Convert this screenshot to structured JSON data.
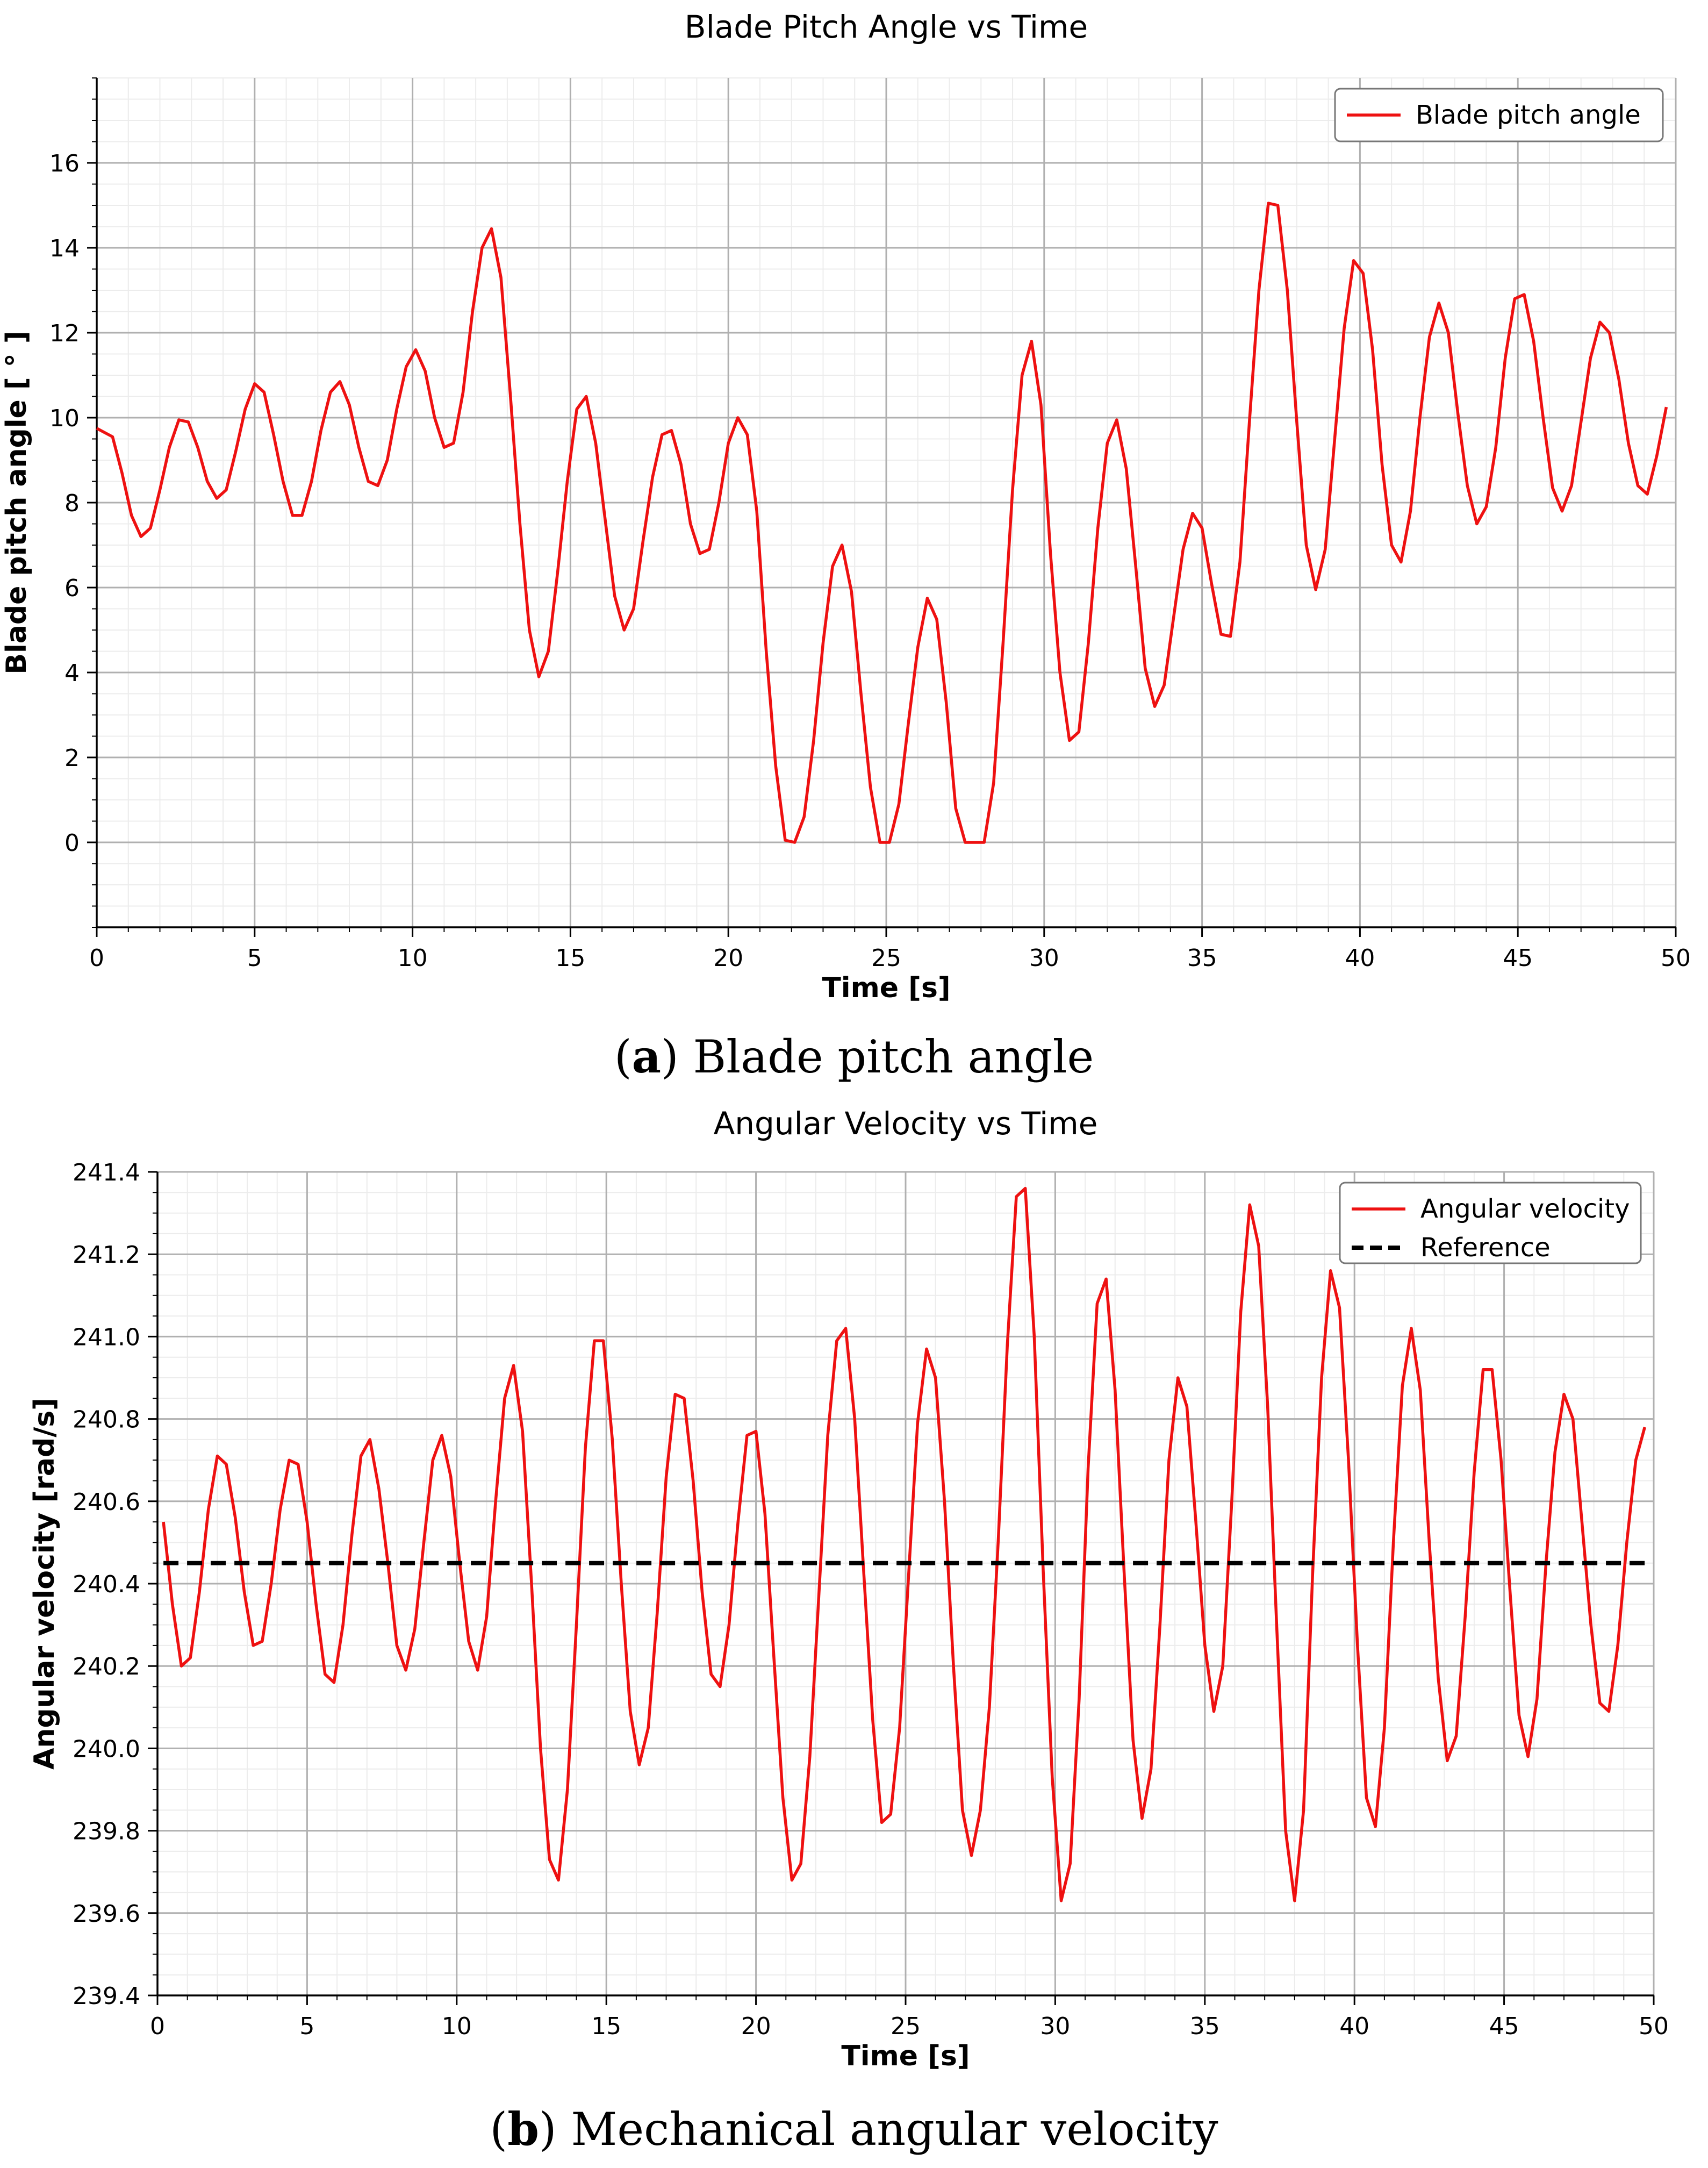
{
  "figure": {
    "caption_a_label": "a",
    "caption_a_text": " Blade pitch angle",
    "caption_b_label": "b",
    "caption_b_text": " Mechanical angular velocity"
  },
  "chart_data": [
    {
      "type": "line",
      "title": "Blade Pitch Angle vs Time",
      "xlabel": "Time [s]",
      "ylabel": "Blade pitch angle [ ° ]",
      "xlim": [
        0,
        50
      ],
      "ylim": [
        -2,
        18
      ],
      "xticks": [
        0,
        5,
        10,
        15,
        20,
        25,
        30,
        35,
        40,
        45,
        50
      ],
      "yticks": [
        0,
        2,
        4,
        6,
        8,
        10,
        12,
        14,
        16
      ],
      "ytick_labels": [
        "0",
        "2",
        "4",
        "6",
        "8",
        "10",
        "12",
        "14",
        "16"
      ],
      "grid": true,
      "legend": "top-right",
      "series": [
        {
          "name": "Blade pitch angle",
          "color": "#ee1111",
          "dash": "solid",
          "x": [
            0.0,
            0.5,
            0.8,
            1.1,
            1.4,
            1.7,
            2.0,
            2.3,
            2.6,
            2.9,
            3.2,
            3.5,
            3.8,
            4.1,
            4.4,
            4.7,
            5.0,
            5.3,
            5.6,
            5.9,
            6.2,
            6.5,
            6.8,
            7.1,
            7.4,
            7.7,
            8.0,
            8.3,
            8.6,
            8.9,
            9.2,
            9.5,
            9.8,
            10.1,
            10.4,
            10.7,
            11.0,
            11.3,
            11.6,
            11.9,
            12.2,
            12.5,
            12.8,
            13.1,
            13.4,
            13.7,
            14.0,
            14.3,
            14.6,
            14.9,
            15.2,
            15.5,
            15.8,
            16.1,
            16.4,
            16.7,
            17.0,
            17.3,
            17.6,
            17.9,
            18.2,
            18.5,
            18.8,
            19.1,
            19.4,
            19.7,
            20.0,
            20.3,
            20.6,
            20.9,
            21.2,
            21.5,
            21.8,
            22.1,
            22.4,
            22.7,
            23.0,
            23.3,
            23.6,
            23.9,
            24.2,
            24.5,
            24.8,
            25.1,
            25.4,
            25.7,
            26.0,
            26.3,
            26.6,
            26.9,
            27.2,
            27.5,
            27.8,
            28.1,
            28.4,
            28.7,
            29.0,
            29.3,
            29.6,
            29.9,
            30.2,
            30.5,
            30.8,
            31.1,
            31.4,
            31.7,
            32.0,
            32.3,
            32.6,
            32.9,
            33.2,
            33.5,
            33.8,
            34.1,
            34.4,
            34.7,
            35.0,
            35.3,
            35.6,
            35.9,
            36.2,
            36.5,
            36.8,
            37.1,
            37.4,
            37.7,
            38.0,
            38.3,
            38.6,
            38.9,
            39.2,
            39.5,
            39.8,
            40.1,
            40.4,
            40.7,
            41.0,
            41.3,
            41.6,
            41.9,
            42.2,
            42.5,
            42.8,
            43.1,
            43.4,
            43.7,
            44.0,
            44.3,
            44.6,
            44.9,
            45.2,
            45.5,
            45.8,
            46.1,
            46.4,
            46.7,
            47.0,
            47.3,
            47.6,
            47.9,
            48.2,
            48.5,
            48.8,
            49.1,
            49.4,
            49.7
          ],
          "y": [
            9.75,
            9.55,
            8.7,
            7.7,
            7.2,
            7.4,
            8.3,
            9.3,
            9.95,
            9.9,
            9.3,
            8.5,
            8.1,
            8.3,
            9.2,
            10.2,
            10.8,
            10.6,
            9.6,
            8.5,
            7.7,
            7.7,
            8.5,
            9.7,
            10.6,
            10.85,
            10.3,
            9.3,
            8.5,
            8.4,
            9.0,
            10.2,
            11.2,
            11.6,
            11.1,
            10.0,
            9.3,
            9.4,
            10.6,
            12.5,
            14.0,
            14.45,
            13.3,
            10.5,
            7.5,
            5.0,
            3.9,
            4.5,
            6.4,
            8.5,
            10.2,
            10.5,
            9.4,
            7.6,
            5.8,
            5.0,
            5.5,
            7.1,
            8.6,
            9.6,
            9.7,
            8.9,
            7.5,
            6.8,
            6.9,
            8.0,
            9.4,
            10.0,
            9.6,
            7.8,
            4.5,
            1.8,
            0.05,
            0.0,
            0.6,
            2.4,
            4.7,
            6.5,
            7.0,
            5.9,
            3.5,
            1.3,
            0.0,
            0.0,
            0.9,
            2.8,
            4.6,
            5.75,
            5.25,
            3.3,
            0.8,
            0.0,
            0.0,
            0.0,
            1.4,
            4.7,
            8.3,
            11.0,
            11.8,
            10.3,
            6.8,
            4.0,
            2.4,
            2.6,
            4.7,
            7.4,
            9.4,
            9.95,
            8.8,
            6.5,
            4.1,
            3.2,
            3.7,
            5.3,
            6.9,
            7.75,
            7.4,
            6.1,
            4.9,
            4.85,
            6.6,
            9.9,
            13.0,
            15.05,
            15.0,
            13.0,
            9.9,
            7.0,
            5.95,
            6.9,
            9.5,
            12.1,
            13.7,
            13.4,
            11.6,
            8.9,
            7.0,
            6.6,
            7.8,
            10.0,
            11.9,
            12.7,
            12.0,
            10.1,
            8.4,
            7.5,
            7.9,
            9.3,
            11.4,
            12.8,
            12.9,
            11.8,
            10.0,
            8.35,
            7.8,
            8.4,
            9.9,
            11.4,
            12.25,
            12.0,
            10.9,
            9.4,
            8.4,
            8.2,
            9.1,
            10.25
          ]
        }
      ]
    },
    {
      "type": "line",
      "title": "Angular Velocity vs Time",
      "xlabel": "Time [s]",
      "ylabel": "Angular velocity [rad/s]",
      "xlim": [
        0,
        50
      ],
      "ylim": [
        239.4,
        241.4
      ],
      "xticks": [
        0,
        5,
        10,
        15,
        20,
        25,
        30,
        35,
        40,
        45,
        50
      ],
      "yticks": [
        239.4,
        239.6,
        239.8,
        240.0,
        240.2,
        240.4,
        240.6,
        240.8,
        241.0,
        241.2,
        241.4
      ],
      "ytick_labels": [
        "239.4",
        "239.6",
        "239.8",
        "240.0",
        "240.2",
        "240.4",
        "240.6",
        "240.8",
        "241.0",
        "241.2",
        "241.4"
      ],
      "grid": true,
      "legend": "top-right",
      "series": [
        {
          "name": "Angular velocity",
          "color": "#ee1111",
          "dash": "solid",
          "x": [
            0.2,
            0.5,
            0.8,
            1.1,
            1.4,
            1.7,
            2.0,
            2.3,
            2.6,
            2.9,
            3.2,
            3.5,
            3.8,
            4.1,
            4.4,
            4.7,
            5.0,
            5.3,
            5.6,
            5.9,
            6.2,
            6.5,
            6.8,
            7.1,
            7.4,
            7.7,
            8.0,
            8.3,
            8.6,
            8.9,
            9.2,
            9.5,
            9.8,
            10.1,
            10.4,
            10.7,
            11.0,
            11.3,
            11.6,
            11.9,
            12.2,
            12.5,
            12.8,
            13.1,
            13.4,
            13.7,
            14.0,
            14.3,
            14.6,
            14.9,
            15.2,
            15.5,
            15.8,
            16.1,
            16.4,
            16.7,
            17.0,
            17.3,
            17.6,
            17.9,
            18.2,
            18.5,
            18.8,
            19.1,
            19.4,
            19.7,
            20.0,
            20.3,
            20.6,
            20.9,
            21.2,
            21.5,
            21.8,
            22.1,
            22.4,
            22.7,
            23.0,
            23.3,
            23.6,
            23.9,
            24.2,
            24.5,
            24.8,
            25.1,
            25.4,
            25.7,
            26.0,
            26.3,
            26.6,
            26.9,
            27.2,
            27.5,
            27.8,
            28.1,
            28.4,
            28.7,
            29.0,
            29.3,
            29.6,
            29.9,
            30.2,
            30.5,
            30.8,
            31.1,
            31.4,
            31.7,
            32.0,
            32.3,
            32.6,
            32.9,
            33.2,
            33.5,
            33.8,
            34.1,
            34.4,
            34.7,
            35.0,
            35.3,
            35.6,
            35.9,
            36.2,
            36.5,
            36.8,
            37.1,
            37.4,
            37.7,
            38.0,
            38.3,
            38.6,
            38.9,
            39.2,
            39.5,
            39.8,
            40.1,
            40.4,
            40.7,
            41.0,
            41.3,
            41.6,
            41.9,
            42.2,
            42.5,
            42.8,
            43.1,
            43.4,
            43.7,
            44.0,
            44.3,
            44.6,
            44.9,
            45.2,
            45.5,
            45.8,
            46.1,
            46.4,
            46.7,
            47.0,
            47.3,
            47.6,
            47.9,
            48.2,
            48.5,
            48.8,
            49.1,
            49.4,
            49.7
          ],
          "y": [
            240.55,
            240.35,
            240.2,
            240.22,
            240.38,
            240.58,
            240.71,
            240.69,
            240.56,
            240.38,
            240.25,
            240.26,
            240.4,
            240.58,
            240.7,
            240.69,
            240.55,
            240.35,
            240.18,
            240.16,
            240.3,
            240.52,
            240.71,
            240.75,
            240.63,
            240.45,
            240.25,
            240.19,
            240.29,
            240.5,
            240.7,
            240.76,
            240.66,
            240.45,
            240.26,
            240.19,
            240.32,
            240.6,
            240.85,
            240.93,
            240.77,
            240.4,
            240.0,
            239.73,
            239.68,
            239.9,
            240.3,
            240.73,
            240.99,
            240.99,
            240.75,
            240.4,
            240.09,
            239.96,
            240.05,
            240.33,
            240.66,
            240.86,
            240.85,
            240.65,
            240.38,
            240.18,
            240.15,
            240.3,
            240.55,
            240.76,
            240.77,
            240.57,
            240.22,
            239.88,
            239.68,
            239.72,
            239.98,
            240.37,
            240.76,
            240.99,
            241.02,
            240.8,
            240.43,
            240.07,
            239.82,
            239.84,
            240.05,
            240.42,
            240.79,
            240.97,
            240.9,
            240.6,
            240.2,
            239.85,
            239.74,
            239.85,
            240.1,
            240.51,
            240.98,
            241.34,
            241.36,
            241.0,
            240.43,
            239.93,
            239.63,
            239.72,
            240.12,
            240.68,
            241.08,
            241.14,
            240.87,
            240.43,
            240.02,
            239.83,
            239.95,
            240.3,
            240.7,
            240.9,
            240.83,
            240.55,
            240.25,
            240.09,
            240.2,
            240.6,
            241.06,
            241.32,
            241.22,
            240.83,
            240.3,
            239.8,
            239.63,
            239.85,
            240.42,
            240.9,
            241.16,
            241.07,
            240.7,
            240.25,
            239.88,
            239.81,
            240.05,
            240.5,
            240.88,
            241.02,
            240.87,
            240.5,
            240.17,
            239.97,
            240.03,
            240.32,
            240.67,
            240.92,
            240.92,
            240.7,
            240.38,
            240.08,
            239.98,
            240.12,
            240.45,
            240.72,
            240.86,
            240.8,
            240.55,
            240.3,
            240.11,
            240.09,
            240.25,
            240.5,
            240.7,
            240.78
          ]
        },
        {
          "name": "Reference",
          "color": "#000000",
          "dash": "dashed",
          "x": [
            0.2,
            49.7
          ],
          "y": [
            240.45,
            240.45
          ]
        }
      ]
    }
  ]
}
